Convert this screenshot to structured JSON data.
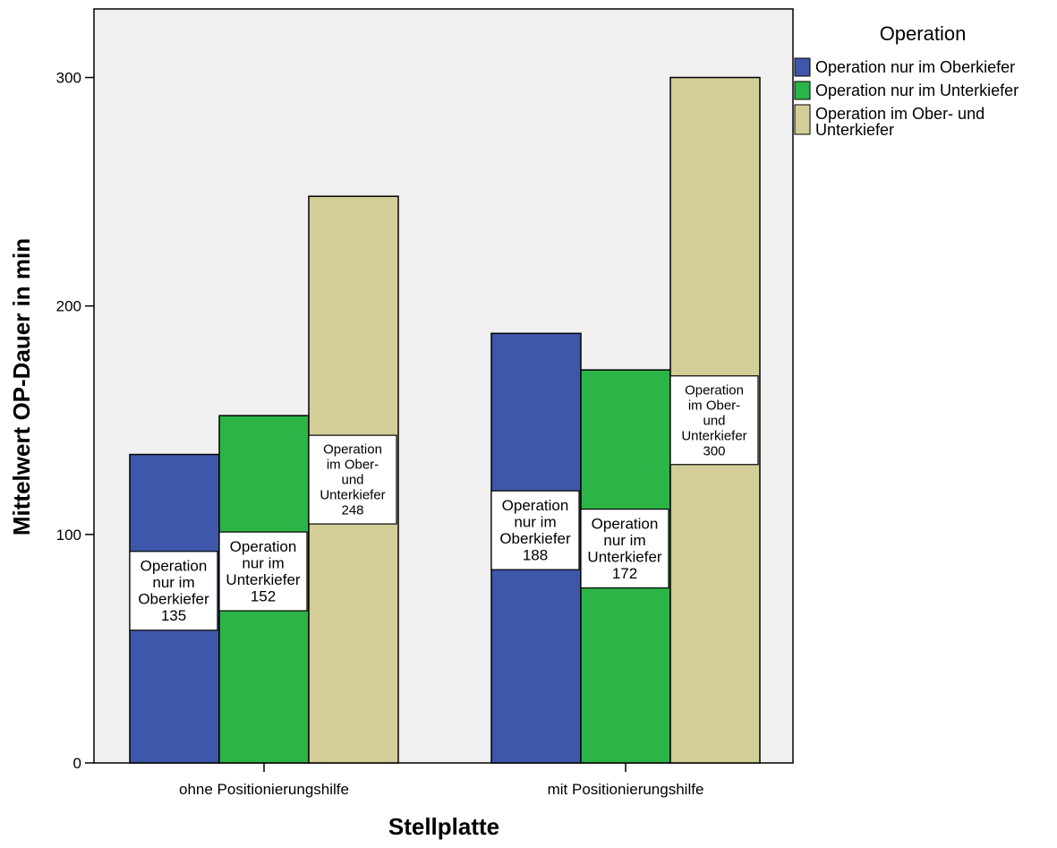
{
  "chart_data": {
    "type": "bar",
    "title": "",
    "xlabel": "Stellplatte",
    "ylabel": "Mittelwert OP-Dauer in min",
    "ylim": [
      0,
      330
    ],
    "yticks": [
      0,
      100,
      200,
      300
    ],
    "grid": false,
    "legend_position": "top-right",
    "legend_title": "Operation",
    "categories": [
      "ohne Positionierungshilfe",
      "mit Positionierungshilfe"
    ],
    "series": [
      {
        "name": "Operation nur im Oberkiefer",
        "values": [
          135,
          188
        ],
        "color": "#3f57aa",
        "bar_label_lines": [
          "Operation",
          "nur im",
          "Oberkiefer"
        ]
      },
      {
        "name": "Operation nur im Unterkiefer",
        "values": [
          152,
          172
        ],
        "color": "#2db447",
        "bar_label_lines": [
          "Operation",
          "nur im",
          "Unterkiefer"
        ]
      },
      {
        "name": "Operation im Ober- und Unterkiefer",
        "values": [
          248,
          300
        ],
        "color": "#d3ce97",
        "legend_lines": [
          "Operation im Ober- und",
          "Unterkiefer"
        ],
        "bar_label_lines": [
          "Operation",
          "im Ober-",
          "und",
          "Unterkiefer"
        ]
      }
    ]
  },
  "colors": {
    "plot_background": "#f0f0f0",
    "axis": "#000000"
  }
}
